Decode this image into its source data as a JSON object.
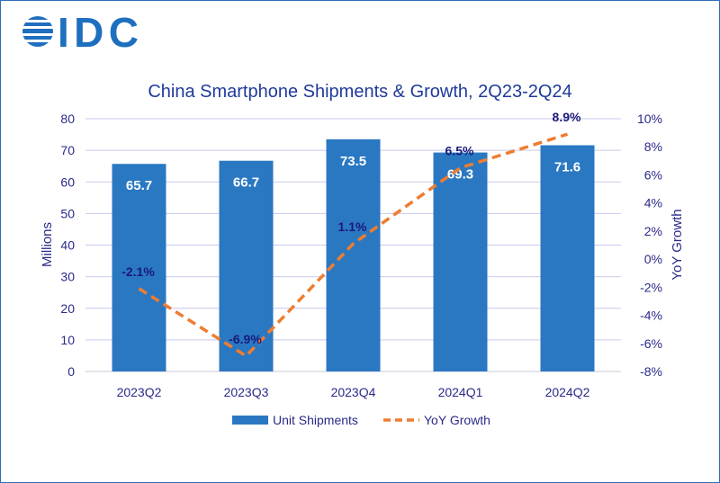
{
  "logo": {
    "text": "IDC",
    "color": "#1f6fbf"
  },
  "chart_data": {
    "type": "bar+line",
    "title": "China Smartphone Shipments & Growth, 2Q23-2Q24",
    "categories": [
      "2023Q2",
      "2023Q3",
      "2023Q4",
      "2024Q1",
      "2024Q2"
    ],
    "series": [
      {
        "name": "Unit Shipments",
        "type": "bar",
        "axis": "left",
        "values": [
          65.7,
          66.7,
          73.5,
          69.3,
          71.6
        ],
        "labels": [
          "65.7",
          "66.7",
          "73.5",
          "69.3",
          "71.6"
        ],
        "color": "#2a78c2"
      },
      {
        "name": "YoY Growth",
        "type": "line",
        "style": "dashed",
        "axis": "right",
        "values": [
          -2.1,
          -6.9,
          1.1,
          6.5,
          8.9
        ],
        "labels": [
          "-2.1%",
          "-6.9%",
          "1.1%",
          "6.5%",
          "8.9%"
        ],
        "color": "#ee7d31"
      }
    ],
    "ylabel": "Millions",
    "y2label": "YoY Growth",
    "ylim": [
      0,
      80
    ],
    "yticks": [
      "0",
      "10",
      "20",
      "30",
      "40",
      "50",
      "60",
      "70",
      "80"
    ],
    "y2lim": [
      -8,
      10
    ],
    "y2ticks": [
      "-8%",
      "-6%",
      "-4%",
      "-2%",
      "0%",
      "2%",
      "4%",
      "6%",
      "8%",
      "10%"
    ],
    "grid": true,
    "legend": "bottom"
  }
}
